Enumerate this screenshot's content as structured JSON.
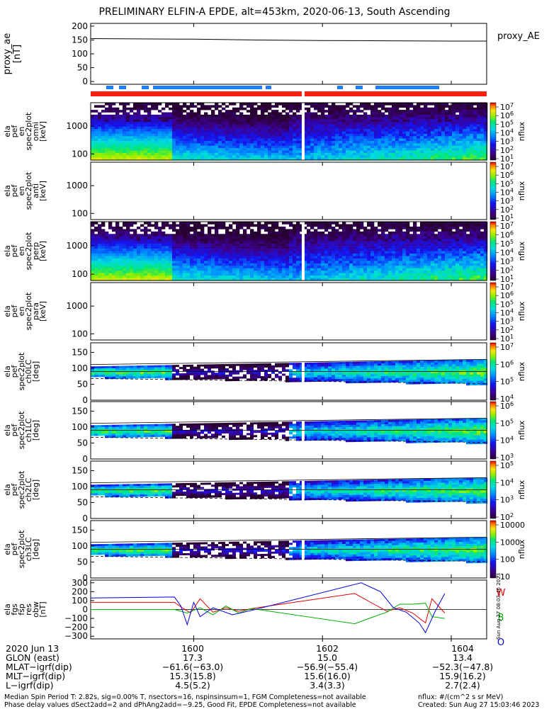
{
  "title": "PRELIMINARY ELFIN-A EPDE, alt=453km, 2020-06-13, South Ascending",
  "colors": {
    "red_bar": "#ff2010",
    "blue_bar": "#1e7cff",
    "line_w": "#e00000",
    "line_b": "#00b000",
    "line_o": "#0000e0"
  },
  "chart_data": [
    {
      "type": "line",
      "name": "proxy_ae",
      "ylabel": "proxy_ae [nT]",
      "legend": "proxy_AE",
      "ylim": [
        -10,
        210
      ],
      "yticks": [
        "200",
        "150",
        "100",
        "50",
        "0"
      ],
      "ytick_values": [
        200,
        150,
        100,
        50,
        0
      ],
      "x": [
        1598.4,
        1600.0,
        1601.0,
        1602.0,
        1603.0,
        1604.0,
        1604.55
      ],
      "values": [
        155,
        153,
        150,
        148,
        147,
        146,
        146
      ]
    },
    {
      "type": "heatmap",
      "name": "spec2plot_omni",
      "ylabel_lines": [
        "ela",
        "pef",
        "en",
        "spec2plot",
        "omni",
        "[keV]"
      ],
      "yticks": [
        "1000",
        "100"
      ],
      "ytick_values": [
        1000,
        100
      ],
      "ylim_log": [
        60,
        7000
      ],
      "colorbar": {
        "label": "nflux",
        "ticks": [
          "10^7",
          "10^6",
          "10^5",
          "10^4",
          "10^3",
          "10^2",
          "10^1"
        ]
      }
    },
    {
      "type": "heatmap",
      "name": "spec2plot_anti",
      "ylabel_lines": [
        "ela",
        "pef",
        "en",
        "spec2plot",
        "anti",
        "[keV]"
      ],
      "yticks": [
        "1000",
        "100"
      ],
      "ytick_values": [
        1000,
        100
      ],
      "ylim_log": [
        60,
        7000
      ],
      "empty": true,
      "colorbar": {
        "label": "nflux",
        "ticks": [
          "10^7",
          "10^6",
          "10^5",
          "10^4",
          "10^3",
          "10^2",
          "10^1"
        ]
      }
    },
    {
      "type": "heatmap",
      "name": "spec2plot_perp",
      "ylabel_lines": [
        "ela",
        "pef",
        "en",
        "spec2plot",
        "perp",
        "[keV]"
      ],
      "yticks": [
        "1000",
        "100"
      ],
      "ytick_values": [
        1000,
        100
      ],
      "ylim_log": [
        60,
        7000
      ],
      "colorbar": {
        "label": "nflux",
        "ticks": [
          "10^7",
          "10^6",
          "10^5",
          "10^4",
          "10^3",
          "10^2",
          "10^1"
        ]
      }
    },
    {
      "type": "heatmap",
      "name": "spec2plot_para",
      "ylabel_lines": [
        "ela",
        "pef",
        "en",
        "spec2plot",
        "para",
        "[keV]"
      ],
      "yticks": [
        "1000",
        "100"
      ],
      "ytick_values": [
        1000,
        100
      ],
      "ylim_log": [
        60,
        7000
      ],
      "empty": true,
      "colorbar": {
        "label": "nflux",
        "ticks": [
          "10^7",
          "10^6",
          "10^5",
          "10^4",
          "10^3",
          "10^2",
          "10^1"
        ]
      }
    },
    {
      "type": "heatmap",
      "name": "spec2plot_ch0LC",
      "ylabel_lines": [
        "ela",
        "pef",
        "spec2plot",
        "ch0LC",
        "[deg]"
      ],
      "yticks": [
        "150",
        "100",
        "50",
        "0"
      ],
      "ytick_values": [
        150,
        100,
        50,
        0
      ],
      "ylim": [
        0,
        180
      ],
      "colorbar": {
        "label": "nflux",
        "ticks": [
          "10^7",
          "10^6",
          "10^5",
          "10^4"
        ]
      }
    },
    {
      "type": "heatmap",
      "name": "spec2plot_ch1LC",
      "ylabel_lines": [
        "ela",
        "pef",
        "spec2plot",
        "ch1LC",
        "[deg]"
      ],
      "yticks": [
        "150",
        "100",
        "50",
        "0"
      ],
      "ytick_values": [
        150,
        100,
        50,
        0
      ],
      "ylim": [
        0,
        180
      ],
      "colorbar": {
        "label": "nflux",
        "ticks": [
          "10^6",
          "10^5",
          "10^4",
          "10^3"
        ]
      }
    },
    {
      "type": "heatmap",
      "name": "spec2plot_ch2LC",
      "ylabel_lines": [
        "ela",
        "pef",
        "spec2plot",
        "ch2LC",
        "[deg]"
      ],
      "yticks": [
        "150",
        "100",
        "50",
        "0"
      ],
      "ytick_values": [
        150,
        100,
        50,
        0
      ],
      "ylim": [
        0,
        180
      ],
      "colorbar": {
        "label": "nflux",
        "ticks": [
          "10^5",
          "10^4",
          "10^3",
          "10^2"
        ]
      }
    },
    {
      "type": "heatmap",
      "name": "spec2plot_ch3LC",
      "ylabel_lines": [
        "ela",
        "pef",
        "spec2plot",
        "ch3LC",
        "[deg]"
      ],
      "yticks": [
        "150",
        "100",
        "50",
        "0"
      ],
      "ytick_values": [
        150,
        100,
        50,
        0
      ],
      "ylim": [
        0,
        180
      ],
      "colorbar": {
        "label": "nflux",
        "ticks": [
          "10000",
          "1000",
          "100",
          "10"
        ]
      }
    },
    {
      "type": "line",
      "name": "res_dbw",
      "ylabel_lines": [
        "ela",
        "fgs",
        "fsp",
        "res",
        "obw",
        "[nT]"
      ],
      "yticks": [
        "300",
        "200",
        "100",
        "0",
        "−100",
        "−200",
        "−300"
      ],
      "ytick_values": [
        300,
        200,
        100,
        0,
        -100,
        -200,
        -300
      ],
      "ylim": [
        -330,
        330
      ],
      "series": [
        {
          "name": "W",
          "x": [
            1598.4,
            1599.7,
            1599.8,
            1599.95,
            1600.1,
            1600.3,
            1600.5,
            1600.7,
            1600.9,
            1602.5,
            1602.8,
            1603.0,
            1603.2,
            1603.4,
            1603.6,
            1603.7,
            1603.8,
            1603.9
          ],
          "values": [
            80,
            80,
            30,
            -40,
            120,
            -30,
            20,
            -20,
            10,
            180,
            60,
            -20,
            20,
            -40,
            -150,
            120,
            40,
            -40
          ]
        },
        {
          "name": "B",
          "x": [
            1598.4,
            1599.7,
            1599.9,
            1600.1,
            1600.3,
            1600.5,
            1600.7,
            1600.9,
            1602.5,
            1602.8,
            1603.0,
            1603.2,
            1603.4,
            1603.6,
            1603.7,
            1603.9
          ],
          "values": [
            0,
            0,
            -40,
            20,
            -60,
            40,
            -40,
            10,
            -160,
            -80,
            -30,
            60,
            60,
            70,
            -80,
            -100
          ]
        },
        {
          "name": "O",
          "x": [
            1598.4,
            1599.7,
            1599.8,
            1599.9,
            1600.0,
            1600.1,
            1600.3,
            1600.6,
            1600.9,
            1602.6,
            1602.9,
            1603.1,
            1603.3,
            1603.5,
            1603.6,
            1603.75,
            1603.9
          ],
          "values": [
            130,
            140,
            40,
            -170,
            80,
            -80,
            20,
            -60,
            -10,
            300,
            200,
            20,
            -30,
            -150,
            -260,
            -20,
            180
          ]
        }
      ]
    }
  ],
  "xaxis": {
    "range": [
      1598.4,
      1604.55
    ],
    "ticks": [
      {
        "t": 1600.0,
        "label": "1600",
        "glon": "17.3",
        "mlat": "−61.6(−63.0)",
        "mlt": "15.3(15.8)",
        "l": "4.5(5.2)"
      },
      {
        "t": 1602.0,
        "label": "1602",
        "glon": "15.0",
        "mlat": "−56.9(−55.4)",
        "mlt": "15.6(16.0)",
        "l": "3.4(3.3)"
      },
      {
        "t": 1604.0,
        "label": "1604",
        "glon": "13.4",
        "mlat": "−52.3(−47.8)",
        "mlt": "15.9(16.2)",
        "l": "2.7(2.4)"
      }
    ],
    "row_labels": {
      "date": "2020 Jun 13",
      "glon": "GLON (east)",
      "mlat": "MLAT−igrf(dip)",
      "mlt": "MLT−igrf(dip)",
      "l": "L−igrf(dip)"
    }
  },
  "footer": {
    "line1": "Median Spin Period T: 2.82s, sig=0.00% T, nsectors=16, nspinsinsum=1, FGM Completeness=not available",
    "line2": "Phase delay values dSect2add=2 and dPhAng2add=−9.25, Good Fit, EPDE Completeness=not available",
    "units": "nflux: #/(cm^2 s sr MeV)",
    "created": "Created: Sun Aug 27 15:03:46 2023",
    "stamp": "Sun Aug 27 08:03:46 2023"
  }
}
